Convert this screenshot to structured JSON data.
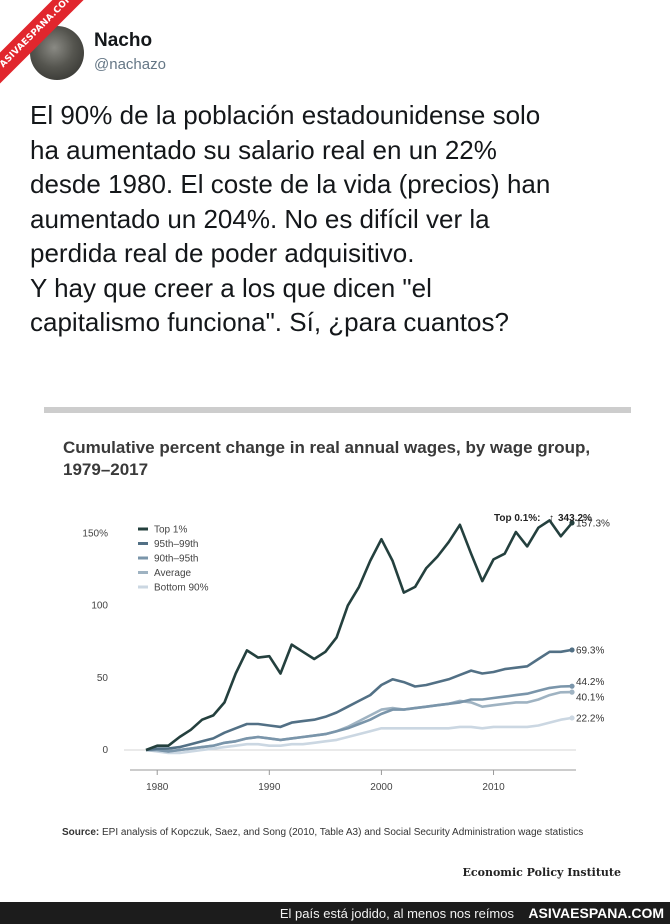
{
  "watermark": {
    "ribbon_text": "ASIVAESPANA.COM"
  },
  "tweet": {
    "author_name": "Nacho",
    "author_handle": "@nachazo",
    "lines": [
      "El 90% de la población estadounidense solo",
      "ha aumentado su salario real en un 22%",
      "desde 1980. El coste de la vida (precios) han",
      "aumentado un 204%. No es difícil ver la",
      "perdida real de poder adquisitivo.",
      "Y hay que creer a los que dicen \"el",
      "capitalismo funciona\". Sí, ¿para cuantos?"
    ]
  },
  "chart_card": {
    "source_label": "Source:",
    "source_text": " EPI analysis of Kopczuk, Saez, and Song (2010, Table A3) and Social Security Administration wage statistics",
    "brand": "Economic Policy Institute"
  },
  "chart_data": {
    "type": "line",
    "title": "Cumulative percent change in real annual wages, by wage group, 1979–2017",
    "xlabel": "",
    "ylabel": "",
    "xlim": [
      1979,
      2017
    ],
    "ylim": [
      0,
      160
    ],
    "x_ticks": [
      1980,
      1990,
      2000,
      2010
    ],
    "y_ticks": [
      0,
      50,
      100,
      150
    ],
    "y_tick_labels": [
      "0",
      "50",
      "100",
      "150%"
    ],
    "grid": false,
    "legend_position": "top-left",
    "annotation": {
      "label": "Top 0.1%:",
      "arrow": "↑",
      "value": "343.2%"
    },
    "x": [
      1979,
      1980,
      1981,
      1982,
      1983,
      1984,
      1985,
      1986,
      1987,
      1988,
      1989,
      1990,
      1991,
      1992,
      1993,
      1994,
      1995,
      1996,
      1997,
      1998,
      1999,
      2000,
      2001,
      2002,
      2003,
      2004,
      2005,
      2006,
      2007,
      2008,
      2009,
      2010,
      2011,
      2012,
      2013,
      2014,
      2015,
      2016,
      2017
    ],
    "series": [
      {
        "name": "Top 1%",
        "color": "#24403e",
        "end_label": "157.3%",
        "values": [
          0,
          3,
          3,
          9,
          14,
          21,
          24,
          33,
          53,
          69,
          64,
          65,
          53,
          73,
          68,
          63,
          68,
          78,
          100,
          113,
          131,
          146,
          131,
          109,
          113,
          126,
          134,
          144,
          156,
          136,
          117,
          132,
          136,
          151,
          141,
          154,
          159,
          148,
          157.3
        ]
      },
      {
        "name": "95th–99th",
        "color": "#527085",
        "end_label": "69.3%",
        "values": [
          0,
          1,
          1,
          2,
          4,
          6,
          8,
          12,
          15,
          18,
          18,
          17,
          16,
          19,
          20,
          21,
          23,
          26,
          30,
          34,
          38,
          45,
          49,
          47,
          44,
          45,
          47,
          49,
          52,
          55,
          53,
          54,
          56,
          57,
          58,
          63,
          68,
          68,
          69.3
        ]
      },
      {
        "name": "90th–95th",
        "color": "#7a95aa",
        "end_label": "44.2%",
        "values": [
          0,
          0,
          -1,
          0,
          1,
          2,
          3,
          5,
          6,
          8,
          9,
          8,
          7,
          8,
          9,
          10,
          11,
          13,
          15,
          18,
          21,
          25,
          28,
          28,
          29,
          30,
          31,
          32,
          33,
          35,
          35,
          36,
          37,
          38,
          39,
          41,
          43,
          44,
          44.2
        ]
      },
      {
        "name": "Average",
        "color": "#9fb3c2",
        "end_label": "40.1%",
        "values": [
          0,
          0,
          -1,
          0,
          1,
          2,
          3,
          5,
          6,
          8,
          9,
          8,
          7,
          8,
          9,
          10,
          11,
          13,
          16,
          20,
          24,
          28,
          29,
          28,
          29,
          30,
          31,
          32,
          34,
          33,
          30,
          31,
          32,
          33,
          33,
          35,
          38,
          40,
          40.1
        ]
      },
      {
        "name": "Bottom 90%",
        "color": "#cbd7e2",
        "end_label": "22.2%",
        "values": [
          0,
          -1,
          -2,
          -2,
          -1,
          0,
          1,
          2,
          3,
          4,
          4,
          3,
          3,
          4,
          4,
          5,
          6,
          7,
          9,
          11,
          13,
          15,
          15,
          15,
          15,
          15,
          15,
          15,
          16,
          16,
          15,
          16,
          16,
          16,
          16,
          17,
          19,
          21,
          22.2
        ]
      }
    ]
  },
  "footer": {
    "caption": "El país está jodido, al menos nos reímos",
    "site": "ASIVAESPANA.COM"
  }
}
